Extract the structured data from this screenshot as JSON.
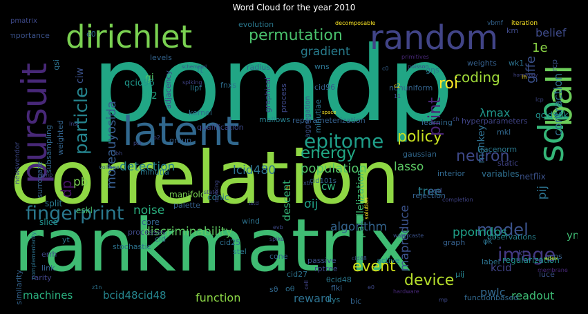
{
  "chart_data": {
    "type": "wordcloud",
    "title": "Word Cloud for the year 2010",
    "words": [
      {
        "text": "pomdp",
        "color": "#21a685"
      },
      {
        "text": "correlation",
        "color": "#8fd744"
      },
      {
        "text": "rankmatrix",
        "color": "#3fbc73"
      },
      {
        "text": "latent",
        "color": "#31688e"
      },
      {
        "text": "dirichlet",
        "color": "#7ad151"
      },
      {
        "text": "random",
        "color": "#414487"
      },
      {
        "text": "sdp",
        "color": "#35b779"
      },
      {
        "text": "pursuit",
        "color": "#482878"
      },
      {
        "text": "ball",
        "color": "#6ccd5a"
      },
      {
        "text": "epitome",
        "color": "#1f9e89"
      },
      {
        "text": "fingerprint",
        "color": "#2a788e"
      },
      {
        "text": "permutation",
        "color": "#4ac16d"
      },
      {
        "text": "image",
        "color": "#443983"
      },
      {
        "text": "model",
        "color": "#3b528b"
      },
      {
        "text": "device",
        "color": "#b5de2b"
      },
      {
        "text": "detection",
        "color": "#26828e"
      },
      {
        "text": "energy",
        "color": "#22a884"
      },
      {
        "text": "coding",
        "color": "#a0da39"
      },
      {
        "text": "policy",
        "color": "#c8e020"
      },
      {
        "text": "neuron",
        "color": "#3e4989"
      },
      {
        "text": "population",
        "color": "#52c569"
      },
      {
        "text": "particle",
        "color": "#25848e"
      },
      {
        "text": "discriminability",
        "color": "#5ec962"
      },
      {
        "text": "lcid480",
        "color": "#2c718e"
      },
      {
        "text": "print",
        "color": "#482475"
      },
      {
        "text": "gradient",
        "color": "#287d8e"
      },
      {
        "text": "roi",
        "color": "#fde725"
      },
      {
        "text": "ppomdps",
        "color": "#1fa088"
      },
      {
        "text": "moreauyosida",
        "color": "#365c8d"
      },
      {
        "text": "parallelization",
        "color": "#3dbc74"
      },
      {
        "text": "algorithm",
        "color": "#33638d"
      },
      {
        "text": "noise",
        "color": "#2ab07f"
      },
      {
        "text": "event",
        "color": "#d2e21b"
      },
      {
        "text": "function",
        "color": "#8bd646"
      },
      {
        "text": "reward",
        "color": "#2d708e"
      },
      {
        "text": "pwlc",
        "color": "#31678e"
      },
      {
        "text": "readout",
        "color": "#3dbc74"
      },
      {
        "text": "bcid48cid48",
        "color": "#25858e"
      },
      {
        "text": "machines",
        "color": "#2ab07f"
      },
      {
        "text": "tree",
        "color": "#287c8e"
      },
      {
        "text": "lasso",
        "color": "#5cc863"
      },
      {
        "text": "descent",
        "color": "#35b779"
      },
      {
        "text": "mapreduce",
        "color": "#3b528b"
      },
      {
        "text": "belief",
        "color": "#3e4a89"
      },
      {
        "text": "giffe",
        "color": "#3b518b"
      },
      {
        "text": "contraction",
        "color": "#2d708e"
      },
      {
        "text": "monkey",
        "color": "#2e6e8e"
      },
      {
        "text": "λmax",
        "color": "#1f958b"
      },
      {
        "text": "σij",
        "color": "#1fa188"
      },
      {
        "text": "pij",
        "color": "#2c728e"
      },
      {
        "text": "cw",
        "color": "#2db27d"
      },
      {
        "text": "pb",
        "color": "#7ad151"
      },
      {
        "text": "dp",
        "color": "#471365"
      },
      {
        "text": "1e",
        "color": "#8bd646"
      },
      {
        "text": "kcid",
        "color": "#414487"
      },
      {
        "text": "yn",
        "color": "#3fbc73"
      },
      {
        "text": "sk2",
        "color": "#22a884"
      },
      {
        "text": "gi",
        "color": "#52c569"
      },
      {
        "text": "ft",
        "color": "#26828e"
      },
      {
        "text": "ciw",
        "color": "#3b528b"
      },
      {
        "text": "qcid96",
        "color": "#1f988b"
      },
      {
        "text": "qcid96k",
        "color": "#21918c"
      },
      {
        "text": "kernel",
        "color": "#2c728e"
      },
      {
        "text": "lipf",
        "color": "#2a788e"
      },
      {
        "text": "group",
        "color": "#35608d"
      },
      {
        "text": "qualification",
        "color": "#3e4989"
      },
      {
        "text": "mallows",
        "color": "#27808e"
      },
      {
        "text": "learning",
        "color": "#31688e"
      },
      {
        "text": "manifold",
        "color": "#7ad151"
      },
      {
        "text": "eskl",
        "color": "#4ac16d"
      },
      {
        "text": "split",
        "color": "#2a788e"
      },
      {
        "text": "slice",
        "color": "#21918c"
      },
      {
        "text": "core",
        "color": "#33638d"
      },
      {
        "text": "conic",
        "color": "#2a788e"
      },
      {
        "text": "palette",
        "color": "#35608d"
      },
      {
        "text": "wind",
        "color": "#2c728e"
      },
      {
        "text": "processes",
        "color": "#3e4989"
      },
      {
        "text": "variables",
        "color": "#2e6e8e"
      },
      {
        "text": "interior",
        "color": "#31688e"
      },
      {
        "text": "netflix",
        "color": "#3b528b"
      },
      {
        "text": "static",
        "color": "#414487"
      },
      {
        "text": "psd",
        "color": "#3e4a89"
      },
      {
        "text": "rejection",
        "color": "#35608d"
      },
      {
        "text": "fdr",
        "color": "#31688e"
      },
      {
        "text": "active",
        "color": "#26828e"
      },
      {
        "text": "stochastic",
        "color": "#2c728e"
      },
      {
        "text": "cone",
        "color": "#33638d"
      },
      {
        "text": "stel",
        "color": "#2a788e"
      },
      {
        "text": "passive",
        "color": "#3b528b"
      },
      {
        "text": "graph",
        "color": "#35608d"
      },
      {
        "text": "label",
        "color": "#2c728e"
      },
      {
        "text": "regularization",
        "color": "#21918c"
      },
      {
        "text": "observations",
        "color": "#27808e"
      },
      {
        "text": "functionbased",
        "color": "#31688e"
      },
      {
        "text": "queried",
        "color": "#2a788e"
      },
      {
        "text": "luce",
        "color": "#3b528b"
      },
      {
        "text": "cps",
        "color": "#35608d"
      },
      {
        "text": "ki",
        "color": "#414487"
      },
      {
        "text": "φk",
        "color": "#2c728e"
      },
      {
        "text": "μij",
        "color": "#26828e"
      },
      {
        "text": "kys",
        "color": "#2a788e"
      },
      {
        "text": "bic",
        "color": "#33638d"
      },
      {
        "text": "flki",
        "color": "#35608d"
      },
      {
        "text": "rptree",
        "color": "#3e4989"
      },
      {
        "text": "cid27",
        "color": "#2c728e"
      },
      {
        "text": "θcid48",
        "color": "#2a788e"
      },
      {
        "text": "sθ",
        "color": "#31688e"
      },
      {
        "text": "oθ",
        "color": "#2e6e8e"
      },
      {
        "text": "link",
        "color": "#35608d"
      },
      {
        "text": "rarity",
        "color": "#414487"
      },
      {
        "text": "errh",
        "color": "#3e4989"
      },
      {
        "text": "yt",
        "color": "#2a788e"
      },
      {
        "text": "cid25",
        "color": "#2e6e8e"
      },
      {
        "text": "cid",
        "color": "#31688e"
      },
      {
        "text": "similarity",
        "color": "#33638d"
      },
      {
        "text": "complementarity",
        "color": "#2c728e"
      },
      {
        "text": "surrogate",
        "color": "#35608d"
      },
      {
        "text": "subsampling",
        "color": "#31688e"
      },
      {
        "text": "newsvendor",
        "color": "#3e4989"
      },
      {
        "text": "minutia",
        "color": "#2a788e"
      },
      {
        "text": "weighted",
        "color": "#33638d"
      },
      {
        "text": "importance",
        "color": "#3b528b"
      },
      {
        "text": "qsi",
        "color": "#2c728e"
      },
      {
        "text": "e0",
        "color": "#31688e"
      },
      {
        "text": "evolution",
        "color": "#2a788e"
      },
      {
        "text": "radius",
        "color": "#31688e"
      },
      {
        "text": "levels",
        "color": "#33638d"
      },
      {
        "text": "fnxs",
        "color": "#2e6e8e"
      },
      {
        "text": "wns",
        "color": "#2c728e"
      },
      {
        "text": "cid96",
        "color": "#35608d"
      },
      {
        "text": "adjacency",
        "color": "#3e4989"
      },
      {
        "text": "graphical",
        "color": "#414487"
      },
      {
        "text": "aggregation",
        "color": "#3b528b"
      },
      {
        "text": "process",
        "color": "#3e4989"
      },
      {
        "text": "reparameterization",
        "color": "#35608d"
      },
      {
        "text": "minutiae",
        "color": "#2c728e"
      },
      {
        "text": "gaussian",
        "color": "#31688e"
      },
      {
        "text": "nonuniform",
        "color": "#33638d"
      },
      {
        "text": "gηs",
        "color": "#2a788e"
      },
      {
        "text": "weights",
        "color": "#35608d"
      },
      {
        "text": "km",
        "color": "#3e4989"
      },
      {
        "text": "wk1",
        "color": "#2c728e"
      },
      {
        "text": "rcp",
        "color": "#3b528b"
      },
      {
        "text": "hyperparameters",
        "color": "#414487"
      },
      {
        "text": "mkl",
        "color": "#31688e"
      },
      {
        "text": "tracenorm",
        "color": "#2a788e"
      },
      {
        "text": "vbmf",
        "color": "#33638d"
      },
      {
        "text": "iteration",
        "color": "#fde725"
      },
      {
        "text": "decomposable",
        "color": "#fde725"
      },
      {
        "text": "primitives",
        "color": "#482878"
      },
      {
        "text": "poisson",
        "color": "#3e4989"
      },
      {
        "text": "homotopy",
        "color": "#414487"
      },
      {
        "text": "schemmel",
        "color": "#3b528b"
      },
      {
        "text": "spiking",
        "color": "#414487"
      },
      {
        "text": "space",
        "color": "#fde725"
      },
      {
        "text": "voltage",
        "color": "#35608d"
      },
      {
        "text": "cid101s",
        "color": "#33638d"
      },
      {
        "text": "rl",
        "color": "#fde725"
      },
      {
        "text": "xtn",
        "color": "#3b528b"
      },
      {
        "text": "solution",
        "color": "#fde725"
      },
      {
        "text": "completion",
        "color": "#414487"
      },
      {
        "text": "dmixing",
        "color": "#3e4989"
      },
      {
        "text": "state",
        "color": "#414487"
      },
      {
        "text": "watercaste",
        "color": "#3b528b"
      },
      {
        "text": "c0",
        "color": "#35608d"
      },
      {
        "text": "c2",
        "color": "#fde725"
      },
      {
        "text": "ln",
        "color": "#fde725"
      },
      {
        "text": "adex",
        "color": "#b5de2b"
      },
      {
        "text": "membrane",
        "color": "#482878"
      },
      {
        "text": "hardware",
        "color": "#482878"
      },
      {
        "text": "cell",
        "color": "#414487"
      },
      {
        "text": "spike",
        "color": "#414487"
      },
      {
        "text": "evb",
        "color": "#3e4989"
      },
      {
        "text": "e0",
        "color": "#3e4989"
      },
      {
        "text": "cid48",
        "color": "#3b528b"
      },
      {
        "text": "z1n",
        "color": "#2c728e"
      },
      {
        "text": "lcp",
        "color": "#3e4989"
      },
      {
        "text": "istd",
        "color": "#3e4989"
      },
      {
        "text": "bh",
        "color": "#3e4989"
      },
      {
        "text": "psr",
        "color": "#3e4989"
      },
      {
        "text": "o2",
        "color": "#3e4989"
      },
      {
        "text": "rpmp",
        "color": "#3e4989"
      },
      {
        "text": "mp",
        "color": "#3e4989"
      },
      {
        "text": "ch",
        "color": "#3e4989"
      },
      {
        "text": "lnsi",
        "color": "#3e4989"
      },
      {
        "text": "11",
        "color": "#3e4989"
      },
      {
        "text": "pmatrix",
        "color": "#3e4989"
      }
    ]
  }
}
